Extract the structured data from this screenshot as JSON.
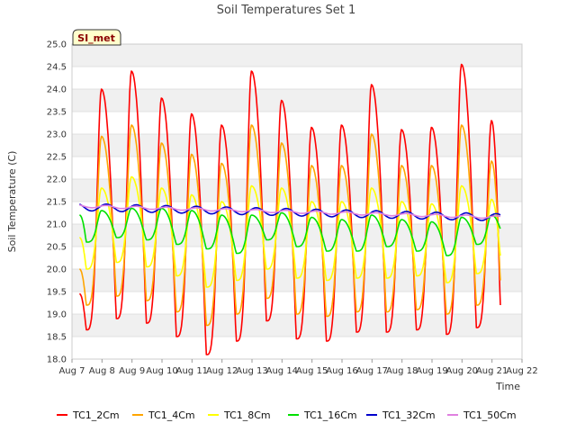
{
  "chart_data": {
    "type": "line",
    "title": "Soil Temperatures Set 1",
    "xlabel": "Time",
    "ylabel": "Soil Temperature (C)",
    "ylim": [
      18.0,
      25.0
    ],
    "xlim_days": [
      7,
      22
    ],
    "x_ticks": [
      "Aug 7",
      "Aug 8",
      "Aug 9",
      "Aug 10",
      "Aug 11",
      "Aug 12",
      "Aug 13",
      "Aug 14",
      "Aug 15",
      "Aug 16",
      "Aug 17",
      "Aug 18",
      "Aug 19",
      "Aug 20",
      "Aug 21",
      "Aug 22"
    ],
    "y_ticks": [
      "18.0",
      "18.5",
      "19.0",
      "19.5",
      "20.0",
      "20.5",
      "21.0",
      "21.5",
      "22.0",
      "22.5",
      "23.0",
      "23.5",
      "24.0",
      "24.5",
      "25.0"
    ],
    "badge": "SI_met",
    "background_bands": true,
    "legend_position": "bottom",
    "series": [
      {
        "name": "TC1_2Cm",
        "color": "#ff0000",
        "peaks": [
          24.0,
          24.4,
          23.8,
          23.45,
          23.2,
          24.4,
          23.75,
          23.15,
          23.2,
          24.1,
          23.1,
          23.15,
          24.55,
          23.3
        ],
        "troughs": [
          19.4,
          18.65,
          18.9,
          18.8,
          18.5,
          18.1,
          18.4,
          18.85,
          18.45,
          18.4,
          18.6,
          18.6,
          18.65,
          18.55,
          18.7,
          19.2
        ],
        "start": 19.45,
        "end": 19.2
      },
      {
        "name": "TC1_4Cm",
        "color": "#ffa500",
        "peaks": [
          22.95,
          23.2,
          22.8,
          22.55,
          22.35,
          23.2,
          22.8,
          22.3,
          22.3,
          23.0,
          22.3,
          22.3,
          23.2,
          22.4
        ],
        "troughs": [
          20.0,
          19.2,
          19.4,
          19.3,
          19.05,
          18.75,
          19.0,
          19.35,
          19.0,
          18.95,
          19.05,
          19.05,
          19.1,
          19.0,
          19.2,
          19.75
        ],
        "start": 20.0,
        "end": 19.75
      },
      {
        "name": "TC1_8Cm",
        "color": "#ffff00",
        "peaks": [
          21.8,
          22.05,
          21.8,
          21.65,
          21.5,
          21.85,
          21.8,
          21.5,
          21.5,
          21.8,
          21.5,
          21.45,
          21.85,
          21.55
        ],
        "troughs": [
          20.7,
          20.0,
          20.15,
          20.05,
          19.85,
          19.6,
          19.75,
          20.0,
          19.8,
          19.75,
          19.8,
          19.8,
          19.85,
          19.7,
          19.9,
          20.3
        ],
        "start": 20.7,
        "end": 20.3
      },
      {
        "name": "TC1_16Cm",
        "color": "#00e000",
        "peaks": [
          21.3,
          21.35,
          21.35,
          21.3,
          21.2,
          21.2,
          21.25,
          21.15,
          21.1,
          21.2,
          21.1,
          21.05,
          21.15,
          21.2
        ],
        "troughs": [
          21.2,
          20.6,
          20.7,
          20.65,
          20.55,
          20.45,
          20.35,
          20.65,
          20.5,
          20.4,
          20.4,
          20.5,
          20.4,
          20.3,
          20.55,
          20.9
        ],
        "start": 21.2,
        "end": 20.9
      },
      {
        "name": "TC1_32Cm",
        "color": "#0000cc",
        "start": 21.38,
        "end": 21.15,
        "amp": 0.08
      },
      {
        "name": "TC1_50Cm",
        "color": "#e080e0",
        "start": 21.4,
        "end": 21.15,
        "amp": 0.03
      }
    ]
  }
}
